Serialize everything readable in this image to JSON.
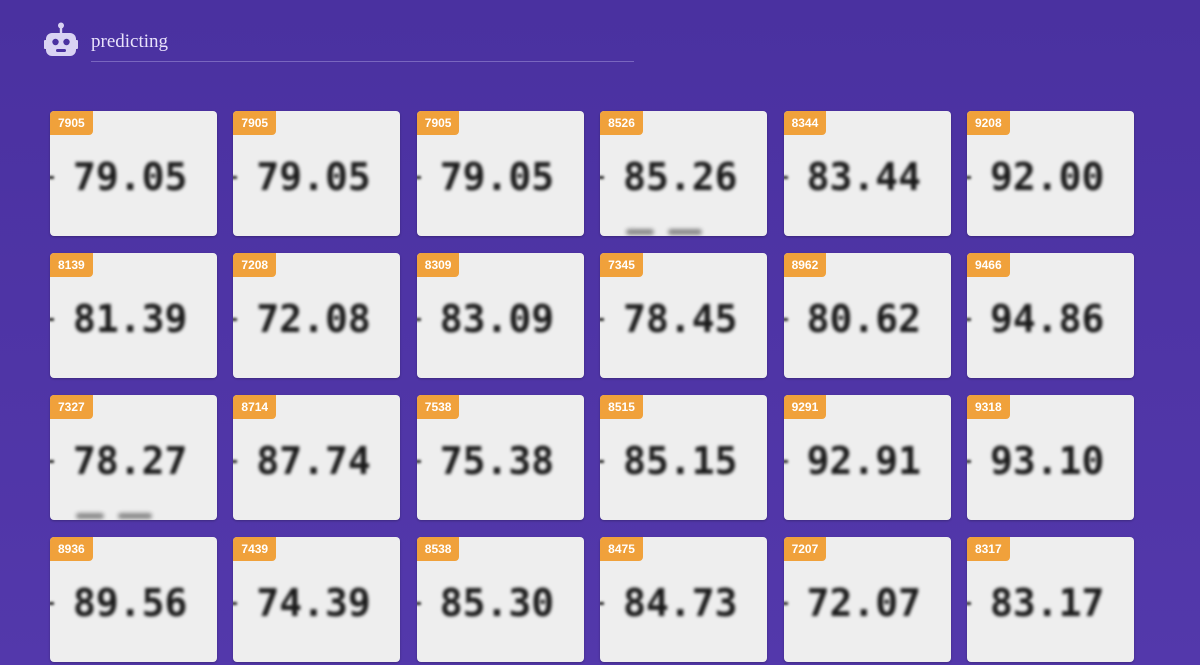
{
  "app": {
    "title": "predicting",
    "logo_icon": "robot-icon"
  },
  "colors": {
    "background": "#4a31a0",
    "badge": "#f0a13b",
    "card": "#eeeeee"
  },
  "predictions": [
    {
      "label": "7905",
      "reading": "79.05",
      "ghost": false
    },
    {
      "label": "7905",
      "reading": "79.05",
      "ghost": false
    },
    {
      "label": "7905",
      "reading": "79.05",
      "ghost": false
    },
    {
      "label": "8526",
      "reading": "85.26",
      "ghost": true
    },
    {
      "label": "8344",
      "reading": "83.44",
      "ghost": false
    },
    {
      "label": "9208",
      "reading": "92.00",
      "ghost": false
    },
    {
      "label": "8139",
      "reading": "81.39",
      "ghost": false
    },
    {
      "label": "7208",
      "reading": "72.08",
      "ghost": false
    },
    {
      "label": "8309",
      "reading": "83.09",
      "ghost": false
    },
    {
      "label": "7345",
      "reading": "78.45",
      "ghost": false
    },
    {
      "label": "8962",
      "reading": "80.62",
      "ghost": false
    },
    {
      "label": "9466",
      "reading": "94.86",
      "ghost": false
    },
    {
      "label": "7327",
      "reading": "78.27",
      "ghost": true
    },
    {
      "label": "8714",
      "reading": "87.74",
      "ghost": false
    },
    {
      "label": "7538",
      "reading": "75.38",
      "ghost": false
    },
    {
      "label": "8515",
      "reading": "85.15",
      "ghost": false
    },
    {
      "label": "9291",
      "reading": "92.91",
      "ghost": false
    },
    {
      "label": "9318",
      "reading": "93.10",
      "ghost": false
    },
    {
      "label": "8936",
      "reading": "89.56",
      "ghost": false
    },
    {
      "label": "7439",
      "reading": "74.39",
      "ghost": false
    },
    {
      "label": "8538",
      "reading": "85.30",
      "ghost": false
    },
    {
      "label": "8475",
      "reading": "84.73",
      "ghost": false
    },
    {
      "label": "7207",
      "reading": "72.07",
      "ghost": false
    },
    {
      "label": "8317",
      "reading": "83.17",
      "ghost": false
    }
  ]
}
